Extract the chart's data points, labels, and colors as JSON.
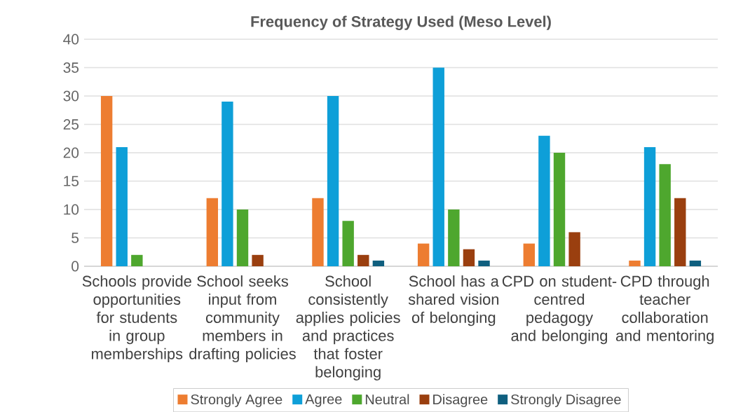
{
  "chart_data": {
    "type": "bar",
    "title": "Frequency of Strategy Used (Meso Level)",
    "categories": [
      "Schools provide opportunities for students in group memberships",
      "School seeks input from community members in drafting policies",
      "School consistently applies policies and practices that foster belonging",
      "School has a shared vision of belonging",
      "CPD on student-centred pedagogy and belonging",
      "CPD through teacher collaboration and mentoring"
    ],
    "series": [
      {
        "name": "Strongly Agree",
        "color": "#ed7d31",
        "values": [
          30,
          12,
          12,
          4,
          4,
          1
        ]
      },
      {
        "name": "Agree",
        "color": "#0e9fd8",
        "values": [
          21,
          29,
          30,
          35,
          23,
          21
        ]
      },
      {
        "name": "Neutral",
        "color": "#4ea72e",
        "values": [
          2,
          10,
          8,
          10,
          20,
          18
        ]
      },
      {
        "name": "Disagree",
        "color": "#9a3f0f",
        "values": [
          0,
          2,
          2,
          3,
          6,
          12
        ]
      },
      {
        "name": "Strongly Disagree",
        "color": "#0f5f7f",
        "values": [
          0,
          0,
          1,
          1,
          0,
          1
        ]
      }
    ],
    "ylim": [
      0,
      40
    ],
    "yticks": [
      0,
      5,
      10,
      15,
      20,
      25,
      30,
      35,
      40
    ],
    "grid": "y",
    "legend": "bottom"
  }
}
